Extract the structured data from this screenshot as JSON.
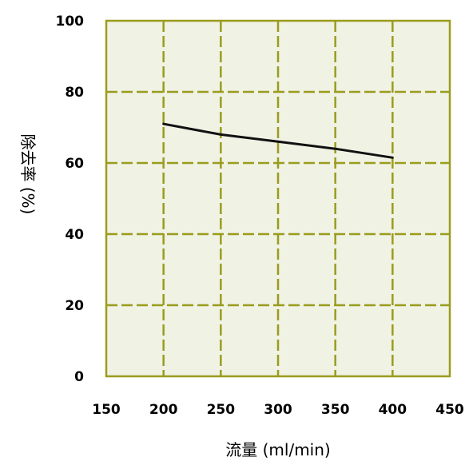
{
  "chart_data": {
    "type": "line",
    "title": "",
    "xlabel": "流量 (ml/min)",
    "ylabel": "除去率 (%)",
    "xlim": [
      150,
      450
    ],
    "ylim": [
      0,
      100
    ],
    "x_ticks": [
      150,
      200,
      250,
      300,
      350,
      400,
      450
    ],
    "y_ticks": [
      0,
      20,
      40,
      60,
      80,
      100
    ],
    "x_tick_labels": [
      "150",
      "200",
      "250",
      "300",
      "350",
      "400",
      "450"
    ],
    "y_tick_labels": [
      "0",
      "20",
      "40",
      "60",
      "80",
      "100"
    ],
    "grid": true,
    "legend": "none",
    "series": [
      {
        "x": [
          200,
          250,
          300,
          350,
          400
        ],
        "y": [
          71,
          68,
          66,
          64,
          61.5
        ],
        "color": "#111111"
      }
    ],
    "colors": {
      "plot_background": "#f0f2e4",
      "grid": "#9a9c1e",
      "frame": "#9a9c1e",
      "line": "#111111"
    }
  }
}
